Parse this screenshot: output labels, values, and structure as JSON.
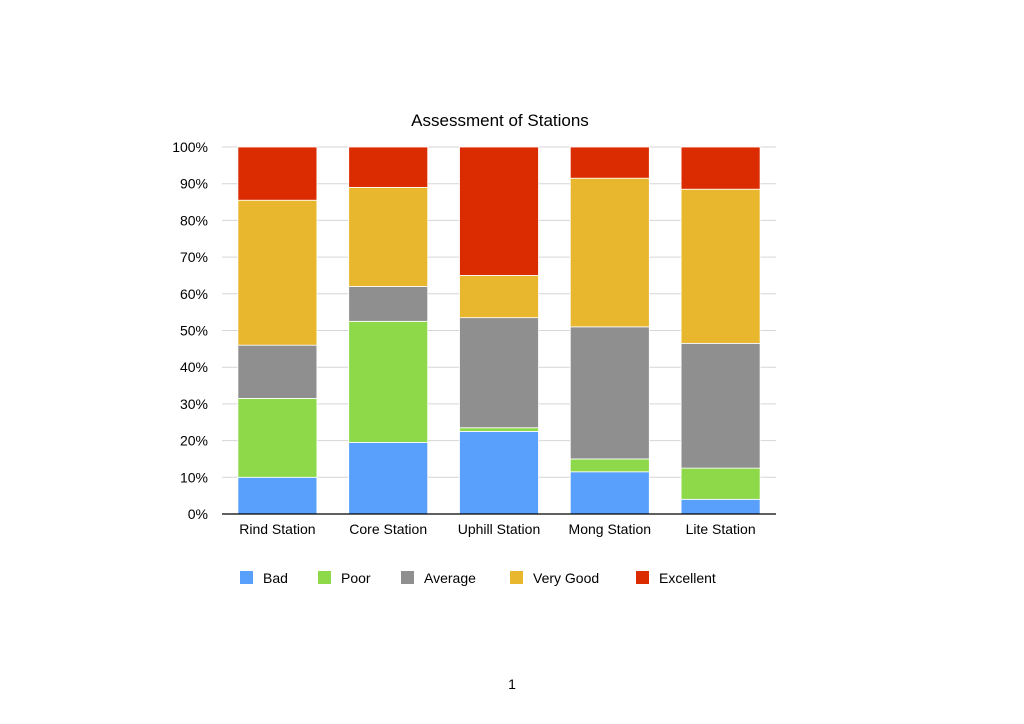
{
  "chart_data": {
    "type": "bar",
    "stacked": true,
    "normalized": true,
    "title": "Assessment of Stations",
    "xlabel": "",
    "ylabel": "",
    "ylim": [
      0,
      100
    ],
    "yticks": [
      "0%",
      "10%",
      "20%",
      "30%",
      "40%",
      "50%",
      "60%",
      "70%",
      "80%",
      "90%",
      "100%"
    ],
    "categories": [
      "Rind Station",
      "Core Station",
      "Uphill Station",
      "Mong Station",
      "Lite Station"
    ],
    "series": [
      {
        "name": "Bad",
        "color": "#58A0FB",
        "values": [
          10,
          19.5,
          22.5,
          11.5,
          4
        ]
      },
      {
        "name": "Poor",
        "color": "#8ED94A",
        "values": [
          21.5,
          33,
          1,
          3.5,
          8.5
        ]
      },
      {
        "name": "Average",
        "color": "#8F8F8F",
        "values": [
          14.5,
          9.5,
          30,
          36,
          34
        ]
      },
      {
        "name": "Very Good",
        "color": "#E8B72E",
        "values": [
          39.5,
          27,
          11.5,
          40.5,
          42
        ]
      },
      {
        "name": "Excellent",
        "color": "#DB2B00",
        "values": [
          14.5,
          11,
          35,
          8.5,
          11.5
        ]
      }
    ],
    "legend_position": "bottom",
    "grid": true
  },
  "page": {
    "number": "1"
  }
}
